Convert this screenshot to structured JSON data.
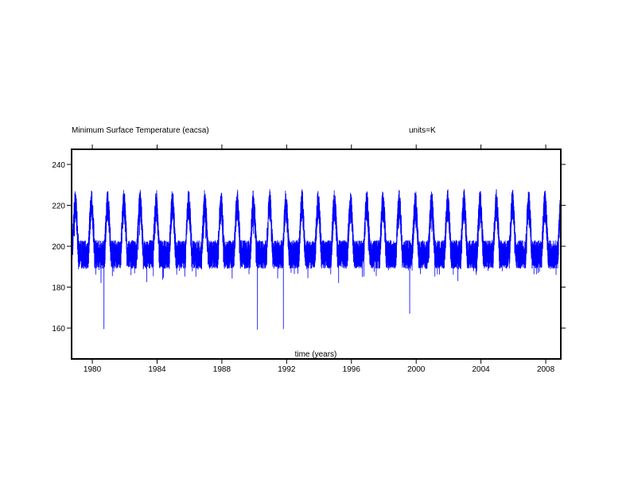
{
  "chart_data": {
    "type": "line",
    "title": "Minimum Surface Temperature (eacsa)",
    "units_label": "units=K",
    "xlabel": "time (years)",
    "ylabel": "",
    "xlim": [
      1978.72,
      2008.93
    ],
    "ylim": [
      144.9,
      247.4
    ],
    "x_ticks": [
      1980,
      1984,
      1988,
      1992,
      1996,
      2000,
      2004,
      2008
    ],
    "x_tick_labels": [
      "1980",
      "1984",
      "1988",
      "1992",
      "1996",
      "2000",
      "2004",
      "2008"
    ],
    "y_ticks": [
      160,
      180,
      200,
      220,
      240
    ],
    "y_tick_labels": [
      "160",
      "180",
      "200",
      "220",
      "240"
    ],
    "grid": false,
    "series": [
      {
        "name": "Minimum Surface Temperature",
        "color": "#0000ff",
        "sampling": "daily",
        "seasonal_peak_phase_year_fraction": 0.95,
        "typical_summer_max": 228,
        "typical_winter_min": 186,
        "winter_mean": 196,
        "spikes": [
          {
            "x": 1980.72,
            "y": 159.5
          },
          {
            "x": 1990.2,
            "y": 159.2
          },
          {
            "x": 1991.8,
            "y": 159.5
          },
          {
            "x": 1999.6,
            "y": 167
          }
        ]
      }
    ]
  }
}
